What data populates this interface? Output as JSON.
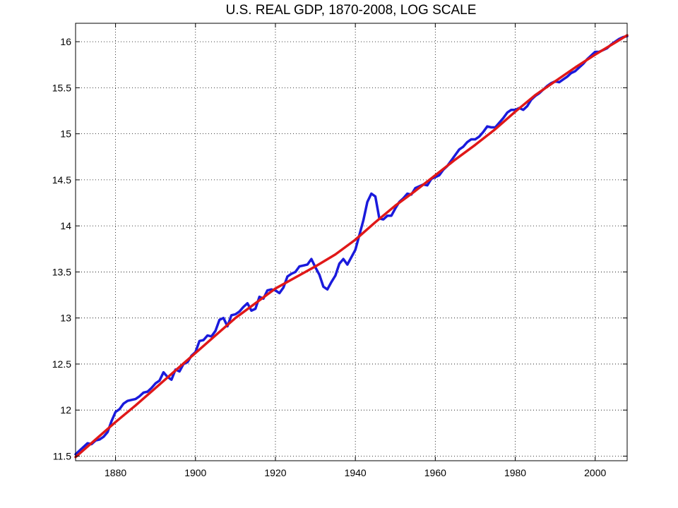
{
  "chart_data": {
    "type": "line",
    "title": "U.S. REAL GDP, 1870-2008, LOG SCALE",
    "xlabel": "",
    "ylabel": "",
    "xlim": [
      1870,
      2008
    ],
    "ylim": [
      11.45,
      16.2
    ],
    "grid": true,
    "legend": "none",
    "x_ticks": [
      1880,
      1900,
      1920,
      1940,
      1960,
      1980,
      2000
    ],
    "y_ticks": [
      11.5,
      12,
      12.5,
      13,
      13.5,
      14,
      14.5,
      15,
      15.5,
      16
    ],
    "x_tick_labels": [
      "1880",
      "1900",
      "1920",
      "1940",
      "1960",
      "1980",
      "2000"
    ],
    "y_tick_labels": [
      "11.5",
      "12",
      "12.5",
      "13",
      "13.5",
      "14",
      "14.5",
      "15",
      "15.5",
      "16"
    ],
    "series": [
      {
        "color": "#1a1adc",
        "points": [
          [
            1870,
            11.52
          ],
          [
            1872,
            11.6
          ],
          [
            1873,
            11.64
          ],
          [
            1874,
            11.63
          ],
          [
            1875,
            11.67
          ],
          [
            1876,
            11.68
          ],
          [
            1877,
            11.71
          ],
          [
            1878,
            11.76
          ],
          [
            1879,
            11.88
          ],
          [
            1880,
            11.98
          ],
          [
            1881,
            12.01
          ],
          [
            1882,
            12.07
          ],
          [
            1883,
            12.1
          ],
          [
            1884,
            12.11
          ],
          [
            1885,
            12.12
          ],
          [
            1886,
            12.15
          ],
          [
            1887,
            12.19
          ],
          [
            1888,
            12.2
          ],
          [
            1889,
            12.24
          ],
          [
            1890,
            12.29
          ],
          [
            1891,
            12.32
          ],
          [
            1892,
            12.41
          ],
          [
            1893,
            12.36
          ],
          [
            1894,
            12.33
          ],
          [
            1895,
            12.44
          ],
          [
            1896,
            12.42
          ],
          [
            1897,
            12.5
          ],
          [
            1898,
            12.52
          ],
          [
            1899,
            12.59
          ],
          [
            1900,
            12.63
          ],
          [
            1901,
            12.75
          ],
          [
            1902,
            12.76
          ],
          [
            1903,
            12.81
          ],
          [
            1904,
            12.8
          ],
          [
            1905,
            12.86
          ],
          [
            1906,
            12.98
          ],
          [
            1907,
            13.0
          ],
          [
            1908,
            12.91
          ],
          [
            1909,
            13.03
          ],
          [
            1910,
            13.04
          ],
          [
            1911,
            13.07
          ],
          [
            1912,
            13.12
          ],
          [
            1913,
            13.16
          ],
          [
            1914,
            13.08
          ],
          [
            1915,
            13.1
          ],
          [
            1916,
            13.23
          ],
          [
            1917,
            13.21
          ],
          [
            1918,
            13.3
          ],
          [
            1919,
            13.31
          ],
          [
            1920,
            13.3
          ],
          [
            1921,
            13.27
          ],
          [
            1922,
            13.33
          ],
          [
            1923,
            13.45
          ],
          [
            1924,
            13.48
          ],
          [
            1925,
            13.5
          ],
          [
            1926,
            13.56
          ],
          [
            1927,
            13.57
          ],
          [
            1928,
            13.58
          ],
          [
            1929,
            13.64
          ],
          [
            1930,
            13.55
          ],
          [
            1931,
            13.47
          ],
          [
            1932,
            13.34
          ],
          [
            1933,
            13.31
          ],
          [
            1934,
            13.39
          ],
          [
            1935,
            13.46
          ],
          [
            1936,
            13.59
          ],
          [
            1937,
            13.64
          ],
          [
            1938,
            13.58
          ],
          [
            1939,
            13.66
          ],
          [
            1940,
            13.74
          ],
          [
            1941,
            13.9
          ],
          [
            1942,
            14.06
          ],
          [
            1943,
            14.26
          ],
          [
            1944,
            14.35
          ],
          [
            1945,
            14.32
          ],
          [
            1946,
            14.08
          ],
          [
            1947,
            14.07
          ],
          [
            1948,
            14.11
          ],
          [
            1949,
            14.11
          ],
          [
            1950,
            14.19
          ],
          [
            1951,
            14.26
          ],
          [
            1952,
            14.3
          ],
          [
            1953,
            14.35
          ],
          [
            1954,
            14.34
          ],
          [
            1955,
            14.41
          ],
          [
            1956,
            14.43
          ],
          [
            1957,
            14.45
          ],
          [
            1958,
            14.44
          ],
          [
            1959,
            14.51
          ],
          [
            1960,
            14.53
          ],
          [
            1961,
            14.55
          ],
          [
            1962,
            14.61
          ],
          [
            1963,
            14.65
          ],
          [
            1964,
            14.71
          ],
          [
            1965,
            14.77
          ],
          [
            1966,
            14.83
          ],
          [
            1967,
            14.86
          ],
          [
            1968,
            14.91
          ],
          [
            1969,
            14.94
          ],
          [
            1970,
            14.94
          ],
          [
            1971,
            14.97
          ],
          [
            1972,
            15.02
          ],
          [
            1973,
            15.08
          ],
          [
            1974,
            15.07
          ],
          [
            1975,
            15.07
          ],
          [
            1976,
            15.12
          ],
          [
            1977,
            15.17
          ],
          [
            1978,
            15.23
          ],
          [
            1979,
            15.26
          ],
          [
            1980,
            15.26
          ],
          [
            1981,
            15.28
          ],
          [
            1982,
            15.26
          ],
          [
            1983,
            15.3
          ],
          [
            1984,
            15.37
          ],
          [
            1985,
            15.41
          ],
          [
            1986,
            15.44
          ],
          [
            1987,
            15.48
          ],
          [
            1988,
            15.52
          ],
          [
            1989,
            15.55
          ],
          [
            1990,
            15.57
          ],
          [
            1991,
            15.56
          ],
          [
            1992,
            15.59
          ],
          [
            1993,
            15.62
          ],
          [
            1994,
            15.66
          ],
          [
            1995,
            15.68
          ],
          [
            1996,
            15.72
          ],
          [
            1997,
            15.76
          ],
          [
            1998,
            15.81
          ],
          [
            1999,
            15.85
          ],
          [
            2000,
            15.89
          ],
          [
            2001,
            15.89
          ],
          [
            2002,
            15.91
          ],
          [
            2003,
            15.93
          ],
          [
            2004,
            15.97
          ],
          [
            2005,
            16.0
          ],
          [
            2006,
            16.03
          ],
          [
            2007,
            16.05
          ],
          [
            2008,
            16.06
          ]
        ]
      },
      {
        "color": "#e01818",
        "points": [
          [
            1870,
            11.49
          ],
          [
            1875,
            11.68
          ],
          [
            1880,
            11.87
          ],
          [
            1885,
            12.05
          ],
          [
            1890,
            12.24
          ],
          [
            1895,
            12.43
          ],
          [
            1900,
            12.62
          ],
          [
            1905,
            12.81
          ],
          [
            1910,
            13.0
          ],
          [
            1915,
            13.16
          ],
          [
            1920,
            13.32
          ],
          [
            1925,
            13.44
          ],
          [
            1930,
            13.56
          ],
          [
            1935,
            13.69
          ],
          [
            1940,
            13.85
          ],
          [
            1945,
            14.04
          ],
          [
            1950,
            14.22
          ],
          [
            1955,
            14.38
          ],
          [
            1960,
            14.55
          ],
          [
            1965,
            14.72
          ],
          [
            1970,
            14.88
          ],
          [
            1975,
            15.05
          ],
          [
            1980,
            15.24
          ],
          [
            1985,
            15.42
          ],
          [
            1990,
            15.57
          ],
          [
            1995,
            15.72
          ],
          [
            2000,
            15.86
          ],
          [
            2005,
            15.99
          ],
          [
            2008,
            16.07
          ]
        ]
      }
    ]
  }
}
